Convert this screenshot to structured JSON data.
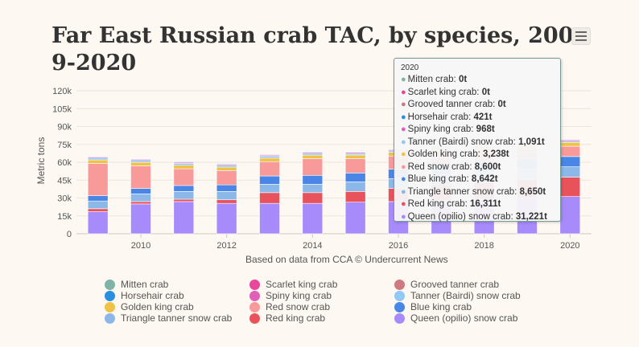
{
  "title": "Far East Russian crab TAC, by species, 2009-2020",
  "chart_data": {
    "type": "bar",
    "stacked": true,
    "title": "Far East Russian crab TAC, by species, 2009-2020",
    "xlabel": "Based on data from CCA © Undercurrent News",
    "ylabel": "Metric tons",
    "ylim": [
      0,
      120000
    ],
    "yticks": [
      {
        "value": 0,
        "label": "0"
      },
      {
        "value": 15000,
        "label": "15k"
      },
      {
        "value": 30000,
        "label": "30k"
      },
      {
        "value": 45000,
        "label": "45k"
      },
      {
        "value": 60000,
        "label": "60k"
      },
      {
        "value": 75000,
        "label": "75k"
      },
      {
        "value": 90000,
        "label": "90k"
      },
      {
        "value": 105000,
        "label": "105k"
      },
      {
        "value": 120000,
        "label": "120k"
      }
    ],
    "xticks": [
      "2010",
      "2012",
      "2014",
      "2016",
      "2018",
      "2020"
    ],
    "categories": [
      2009,
      2010,
      2011,
      2012,
      2013,
      2014,
      2015,
      2016,
      2017,
      2018,
      2019,
      2020
    ],
    "grid": true,
    "legend_position": "bottom",
    "series": [
      {
        "name": "Mitten crab",
        "color": "#7fb3a8",
        "values": [
          0,
          0,
          0,
          0,
          0,
          0,
          0,
          0,
          0,
          0,
          0,
          0
        ]
      },
      {
        "name": "Scarlet king crab",
        "color": "#e8479b",
        "values": [
          0,
          0,
          0,
          0,
          0,
          0,
          0,
          0,
          0,
          0,
          0,
          0
        ]
      },
      {
        "name": "Grooved tanner crab",
        "color": "#cc7a80",
        "values": [
          0,
          0,
          0,
          0,
          0,
          0,
          0,
          0,
          0,
          0,
          0,
          0
        ]
      },
      {
        "name": "Horsehair crab",
        "color": "#2b8fe0",
        "values": [
          500,
          500,
          500,
          500,
          500,
          500,
          450,
          450,
          450,
          430,
          430,
          421
        ]
      },
      {
        "name": "Spiny king crab",
        "color": "#e060b8",
        "values": [
          900,
          900,
          900,
          900,
          900,
          900,
          950,
          950,
          960,
          960,
          960,
          968
        ]
      },
      {
        "name": "Tanner (Bairdi) snow crab",
        "color": "#91c8f5",
        "values": [
          1500,
          1500,
          1500,
          1500,
          1500,
          1500,
          1300,
          1200,
          1200,
          1100,
          1100,
          1091
        ]
      },
      {
        "name": "Golden king crab",
        "color": "#efc348",
        "values": [
          3000,
          3000,
          3000,
          3000,
          3000,
          3000,
          3100,
          3200,
          3200,
          3238,
          3238,
          3238
        ]
      },
      {
        "name": "Red snow crab",
        "color": "#f99a9a",
        "values": [
          27000,
          19000,
          14000,
          12000,
          12000,
          14000,
          12000,
          11000,
          10000,
          9500,
          9000,
          8600
        ]
      },
      {
        "name": "Blue king crab",
        "color": "#4a86e6",
        "values": [
          4500,
          4500,
          5000,
          5500,
          7000,
          7500,
          7500,
          8000,
          8500,
          8600,
          8642,
          8642
        ]
      },
      {
        "name": "Triangle tanner snow crab",
        "color": "#8bb8e8",
        "values": [
          6500,
          6500,
          6500,
          7000,
          7000,
          7000,
          8000,
          8200,
          8500,
          8600,
          8650,
          8650
        ]
      },
      {
        "name": "Red king crab",
        "color": "#e8535b",
        "values": [
          2500,
          2000,
          2000,
          3000,
          9000,
          9000,
          9000,
          11000,
          13000,
          14000,
          15500,
          16311
        ]
      },
      {
        "name": "Queen (opilio) snow crab",
        "color": "#a78bfa",
        "values": [
          18500,
          25000,
          27000,
          25500,
          25500,
          25500,
          26500,
          27000,
          28000,
          29000,
          30000,
          31221
        ]
      }
    ]
  },
  "tooltip": {
    "header": "2020",
    "rows": [
      {
        "label": "Mitten crab",
        "value": "0t"
      },
      {
        "label": "Scarlet king crab",
        "value": "0t"
      },
      {
        "label": "Grooved tanner crab",
        "value": "0t"
      },
      {
        "label": "Horsehair crab",
        "value": "421t"
      },
      {
        "label": "Spiny king crab",
        "value": "968t"
      },
      {
        "label": "Tanner (Bairdi) snow crab",
        "value": "1,091t"
      },
      {
        "label": "Golden king crab",
        "value": "3,238t"
      },
      {
        "label": "Red snow crab",
        "value": "8,600t"
      },
      {
        "label": "Blue king crab",
        "value": "8,642t"
      },
      {
        "label": "Triangle tanner snow crab",
        "value": "8,650t"
      },
      {
        "label": "Red king crab",
        "value": "16,311t"
      },
      {
        "label": "Queen (opilio) snow crab",
        "value": "31,221t"
      }
    ]
  },
  "legend": {
    "order": [
      "Mitten crab",
      "Scarlet king crab",
      "Grooved tanner crab",
      "Horsehair crab",
      "Spiny king crab",
      "Tanner (Bairdi) snow crab",
      "Golden king crab",
      "Red snow crab",
      "Blue king crab",
      "Triangle tanner snow crab",
      "Red king crab",
      "Queen (opilio) snow crab"
    ]
  }
}
